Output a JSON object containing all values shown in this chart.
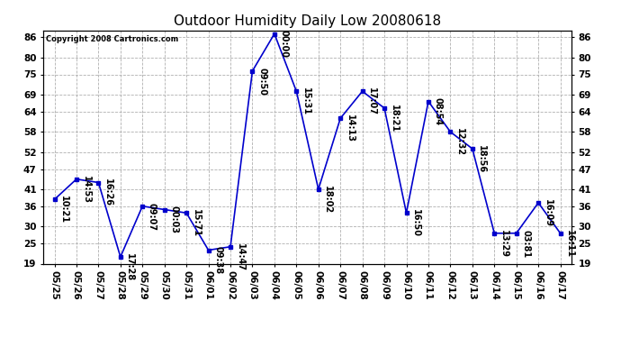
{
  "title": "Outdoor Humidity Daily Low 20080618",
  "copyright": "Copyright 2008 Cartronics.com",
  "x_labels": [
    "05/25",
    "05/26",
    "05/27",
    "05/28",
    "05/29",
    "05/30",
    "05/31",
    "06/01",
    "06/02",
    "06/03",
    "06/04",
    "06/05",
    "06/06",
    "06/07",
    "06/08",
    "06/09",
    "06/10",
    "06/11",
    "06/12",
    "06/13",
    "06/14",
    "06/15",
    "06/16",
    "06/17"
  ],
  "y_values": [
    38,
    44,
    43,
    21,
    36,
    35,
    34,
    23,
    24,
    76,
    87,
    70,
    41,
    62,
    70,
    65,
    34,
    67,
    58,
    53,
    28,
    28,
    37,
    28
  ],
  "point_labels": [
    "10:21",
    "14:53",
    "16:26",
    "17:28",
    "09:07",
    "00:03",
    "15:71",
    "09:38",
    "14:47",
    "09:50",
    "00:00",
    "15:31",
    "18:02",
    "14:13",
    "17:07",
    "18:21",
    "16:50",
    "08:54",
    "12:32",
    "18:56",
    "13:29",
    "03:81",
    "16:09",
    "16:11"
  ],
  "y_ticks": [
    19,
    25,
    30,
    36,
    41,
    47,
    52,
    58,
    64,
    69,
    75,
    80,
    86
  ],
  "y_min": 19,
  "y_max": 88,
  "line_color": "#0000cc",
  "marker_color": "#0000cc",
  "background_color": "#ffffff",
  "grid_color": "#b0b0b0",
  "title_fontsize": 11,
  "label_fontsize": 7.5,
  "point_label_fontsize": 7
}
